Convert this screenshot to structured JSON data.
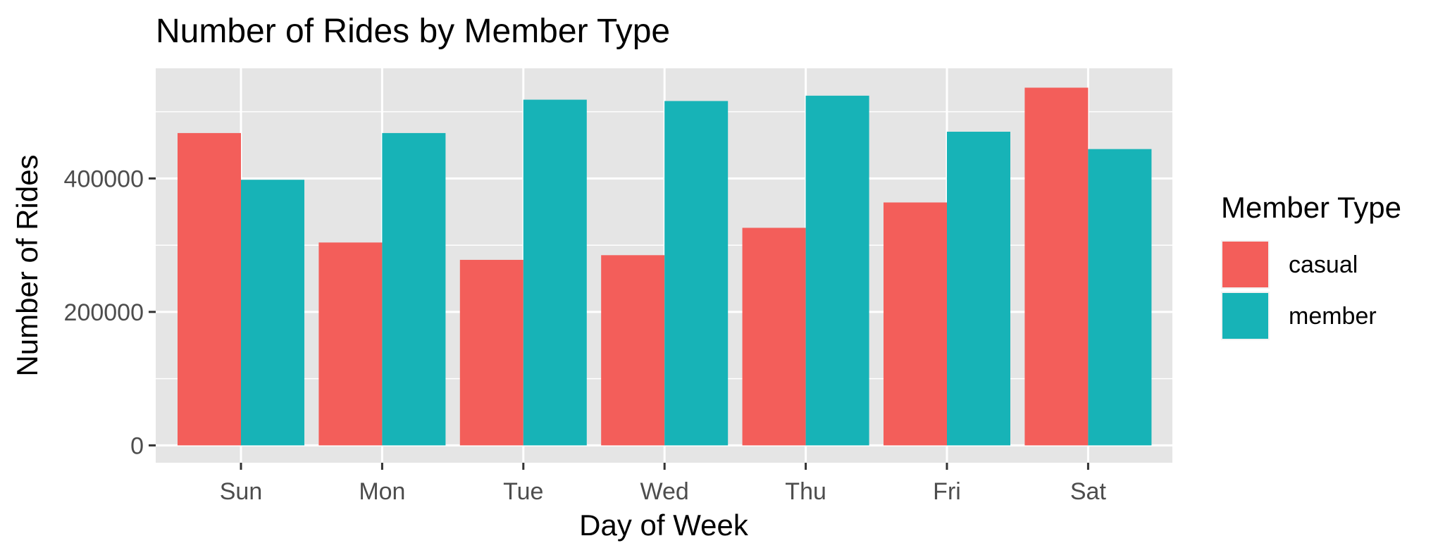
{
  "chart_data": {
    "type": "bar",
    "title": "Number of Rides by Member Type",
    "xlabel": "Day of Week",
    "ylabel": "Number of Rides",
    "categories": [
      "Sun",
      "Mon",
      "Tue",
      "Wed",
      "Thu",
      "Fri",
      "Sat"
    ],
    "series": [
      {
        "name": "casual",
        "color": "#F35E5A",
        "values": [
          468000,
          304000,
          278000,
          285000,
          326000,
          364000,
          536000
        ]
      },
      {
        "name": "member",
        "color": "#17B3B7",
        "values": [
          398000,
          468000,
          518000,
          516000,
          524000,
          470000,
          444000
        ]
      }
    ],
    "ylim": [
      -26000,
      565000
    ],
    "yticks": [
      0,
      200000,
      400000
    ],
    "ytick_labels": [
      "0",
      "200000",
      "400000"
    ],
    "grid": true,
    "panel_background": "#E5E5E5",
    "grid_color": "#FFFFFF",
    "legend": {
      "title": "Member Type",
      "placement": "right",
      "entries": [
        "casual",
        "member"
      ]
    }
  }
}
